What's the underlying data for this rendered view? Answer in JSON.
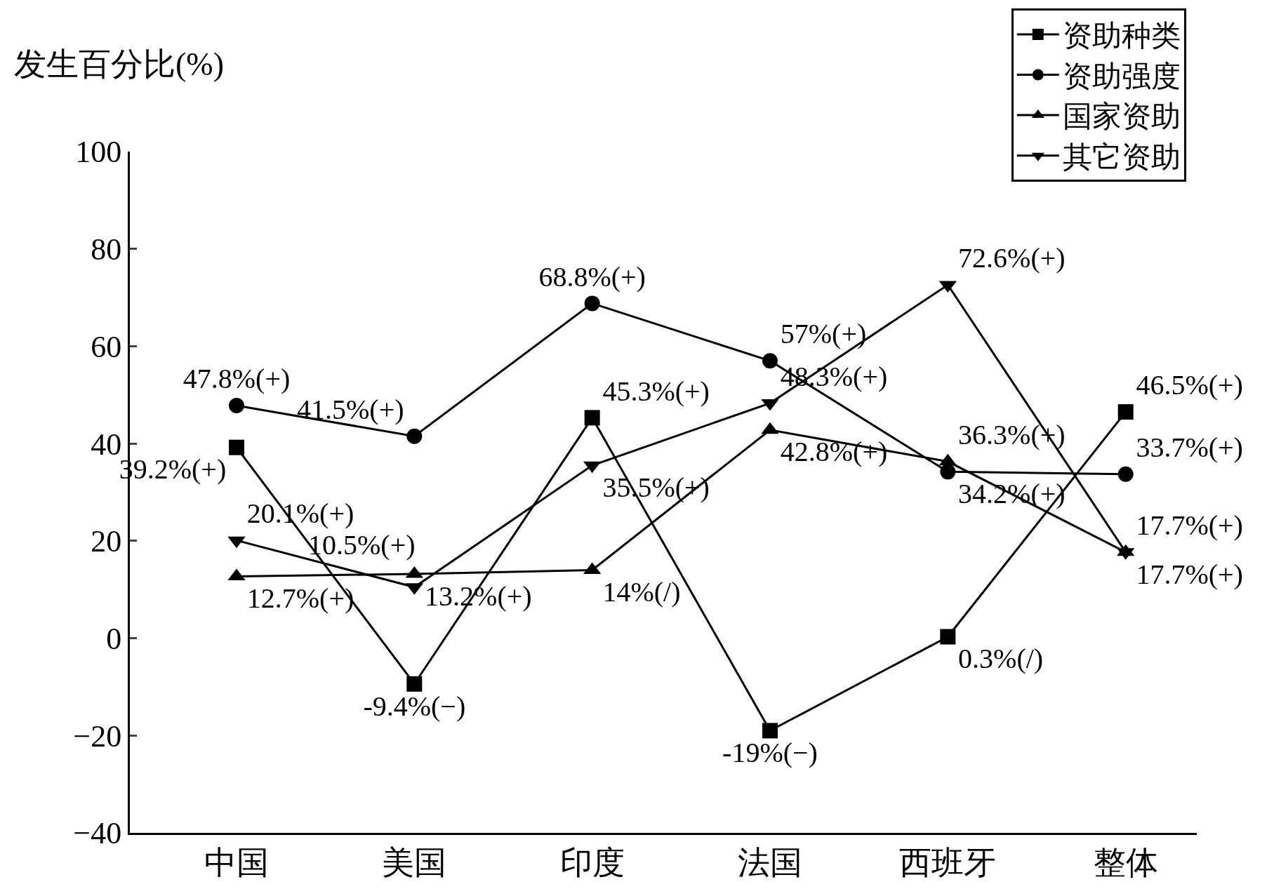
{
  "chart_data": {
    "type": "line",
    "ylabel": "发生百分比(%)",
    "categories": [
      "中国",
      "美国",
      "印度",
      "法国",
      "西班牙",
      "整体"
    ],
    "ylim": [
      -40,
      100
    ],
    "yticks": [
      -40,
      -20,
      0,
      20,
      40,
      60,
      80,
      100
    ],
    "grid": false,
    "legend": "top right",
    "line_style": "solid",
    "series": [
      {
        "name": "资助种类",
        "color": "#000000",
        "marker": "square",
        "values": [
          39.2,
          -9.4,
          45.3,
          -19,
          0.3,
          46.5
        ],
        "value_labels": [
          "39.2%(+)",
          "-9.4%(−)",
          "45.3%(+)",
          "-19%(−)",
          "0.3%(/)",
          "46.5%(+)"
        ]
      },
      {
        "name": "资助强度",
        "color": "#000000",
        "marker": "circle",
        "values": [
          47.8,
          41.5,
          68.8,
          57,
          34.2,
          33.7
        ],
        "value_labels": [
          "47.8%(+)",
          "41.5%(+)",
          "68.8%(+)",
          "57%(+)",
          "34.2%(+)",
          "33.7%(+)"
        ]
      },
      {
        "name": "国家资助",
        "color": "#000000",
        "marker": "triangle",
        "values": [
          12.7,
          13.2,
          14,
          42.8,
          36.3,
          17.7
        ],
        "value_labels": [
          "12.7%(+)",
          "13.2%(+)",
          "14%(/)",
          "42.8%(+)",
          "36.3%(+)",
          "17.7%(+)"
        ]
      },
      {
        "name": "其它资助",
        "color": "#000000",
        "marker": "triangle-down",
        "values": [
          20.1,
          10.5,
          35.5,
          48.3,
          72.6,
          17.7
        ],
        "value_labels": [
          "20.1%(+)",
          "10.5%(+)",
          "35.5%(+)",
          "48.3%(+)",
          "72.6%(+)",
          "17.7%(+)"
        ]
      }
    ]
  }
}
